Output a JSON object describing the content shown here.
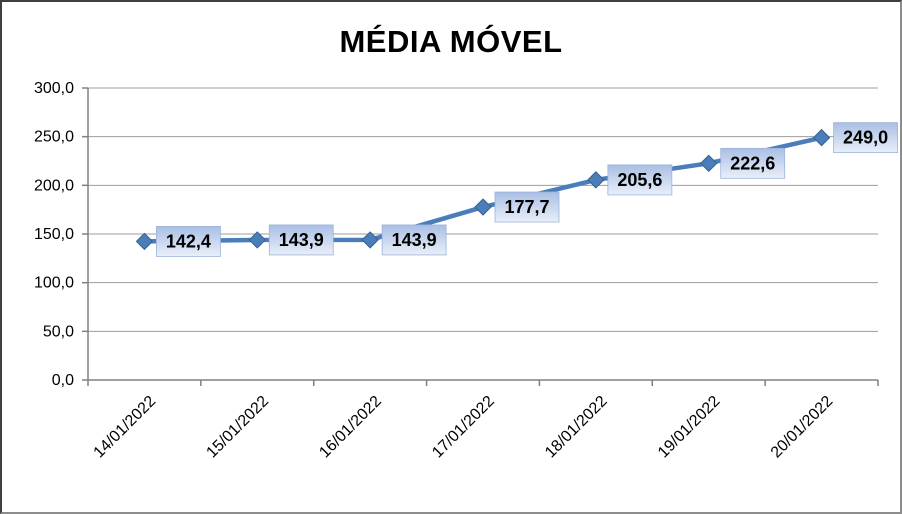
{
  "window": {
    "background": "#ffffff",
    "frame_color_dark": "#3f3f3f",
    "frame_color_light": "#8c8c8c"
  },
  "chart_data": {
    "type": "line",
    "title": "MÉDIA MÓVEL",
    "xlabel": "",
    "ylabel": "",
    "x": [
      "14/01/2022",
      "15/01/2022",
      "16/01/2022",
      "17/01/2022",
      "18/01/2022",
      "19/01/2022",
      "20/01/2022"
    ],
    "series": [
      {
        "values": [
          142.4,
          143.9,
          143.9,
          177.7,
          205.6,
          222.6,
          249.0
        ],
        "point_labels": [
          "142,4",
          "143,9",
          "143,9",
          "177,7",
          "205,6",
          "222,6",
          "249,0"
        ],
        "color": "#4a7ebb",
        "marker": "diamond",
        "marker_border": "#36618e"
      }
    ],
    "ylim": [
      0,
      300
    ],
    "ytick_step": 50,
    "ytick_labels": [
      "0,0",
      "50,0",
      "100,0",
      "150,0",
      "200,0",
      "250,0",
      "300,0"
    ],
    "grid": "horizontal",
    "gridline_color": "#9d9d9d",
    "axis_color": "#808080",
    "legend": "none",
    "x_label_rotation_deg": -45,
    "label_box": {
      "fill_top": "#a9bfe4",
      "fill_bottom": "#e9eff9",
      "border": "#9db3da",
      "text_color": "#000000"
    }
  }
}
